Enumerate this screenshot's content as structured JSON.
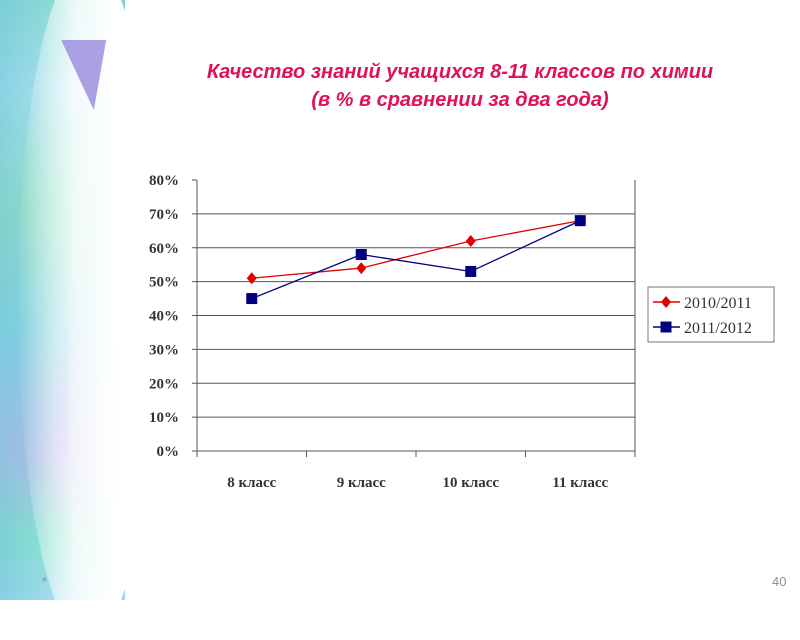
{
  "slide": {
    "footer_left": "*",
    "page_number": "40"
  },
  "chart_data": {
    "type": "line",
    "title": "Качество знаний учащихся 8-11 классов по химии",
    "subtitle": "(в % в сравнении за два года)",
    "categories": [
      "8 класс",
      "9 класс",
      "10 класс",
      "11 класс"
    ],
    "series": [
      {
        "name": "2010/2011",
        "values": [
          51,
          54,
          62,
          68
        ],
        "color": "#e00000",
        "marker": "diamond"
      },
      {
        "name": "2011/2012",
        "values": [
          45,
          58,
          53,
          68
        ],
        "color": "#000080",
        "marker": "square"
      }
    ],
    "yticks": [
      "0%",
      "10%",
      "20%",
      "30%",
      "40%",
      "50%",
      "60%",
      "70%",
      "80%"
    ],
    "ylim": [
      0,
      80
    ],
    "xlabel": "",
    "ylabel": "",
    "grid": true,
    "legend": "right"
  }
}
